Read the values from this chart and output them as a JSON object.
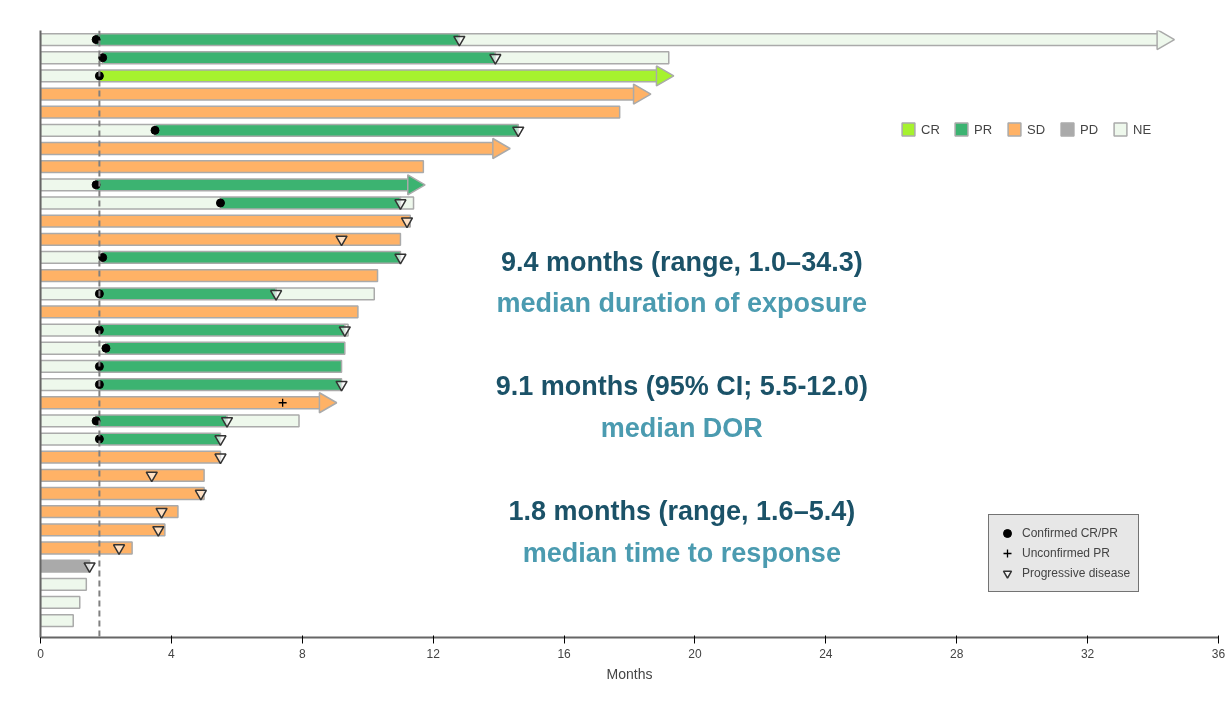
{
  "chart_data": {
    "type": "bar",
    "orientation": "horizontal",
    "stacked": true,
    "xlabel": "Months",
    "categories": [
      null,
      null,
      null,
      null,
      null,
      null,
      null,
      null,
      null,
      null,
      null,
      null,
      null,
      null,
      null,
      null,
      null,
      null,
      null,
      null,
      null,
      null,
      null,
      null,
      null,
      null,
      null,
      null,
      null,
      null,
      null,
      null,
      null
    ],
    "xlim": [
      0,
      36
    ],
    "xticks": [
      0,
      4,
      8,
      12,
      16,
      20,
      24,
      28,
      32,
      36
    ],
    "tick_labels": "x",
    "grid": false,
    "legend": "right",
    "series": [
      {
        "color": "#eef8ec",
        "values": [
          1.7,
          1.9,
          1.8,
          null,
          null,
          3.5,
          null,
          null,
          1.7,
          5.5,
          null,
          null,
          1.9,
          null,
          1.8,
          null,
          1.8,
          2.0,
          1.8,
          1.8,
          null,
          1.7,
          1.8,
          null,
          null,
          null,
          null,
          null,
          null,
          null,
          1.4,
          1.2,
          1.0
        ]
      },
      {
        "name": "CR",
        "color": "#a6f22e",
        "values": [
          null,
          null,
          17.2,
          null,
          null,
          null,
          null,
          null,
          null,
          null,
          null,
          null,
          null,
          null,
          null,
          null,
          null,
          null,
          null,
          null,
          null,
          null,
          null,
          null,
          null,
          null,
          null,
          null,
          null,
          null,
          null,
          null,
          null
        ]
      },
      {
        "name": "PR",
        "color": "#3cb371",
        "values": [
          11.1,
          12.0,
          null,
          null,
          null,
          11.1,
          null,
          null,
          9.7,
          5.5,
          null,
          null,
          9.1,
          null,
          5.4,
          null,
          7.5,
          7.3,
          7.4,
          7.4,
          null,
          4.0,
          3.7,
          null,
          null,
          null,
          null,
          null,
          null,
          null,
          null,
          null,
          null
        ]
      },
      {
        "name": "SD",
        "color": "#ffb266",
        "values": [
          null,
          null,
          null,
          18.3,
          17.7,
          null,
          14.0,
          11.7,
          null,
          null,
          11.3,
          11.0,
          null,
          10.3,
          null,
          9.7,
          null,
          null,
          null,
          null,
          8.7,
          null,
          null,
          5.5,
          5.0,
          5.0,
          4.2,
          3.8,
          2.8,
          null,
          null,
          null,
          null
        ]
      },
      {
        "name": "PD",
        "color": "#aaaaaa",
        "values": [
          null,
          null,
          null,
          null,
          null,
          null,
          null,
          null,
          null,
          null,
          null,
          null,
          null,
          null,
          null,
          null,
          null,
          null,
          null,
          null,
          null,
          null,
          null,
          null,
          null,
          null,
          null,
          null,
          null,
          1.5,
          null,
          null,
          null
        ]
      },
      {
        "name": "NE",
        "color": "#eef8ec",
        "values": [
          21.5,
          5.3,
          null,
          null,
          null,
          null,
          null,
          null,
          null,
          0.4,
          null,
          null,
          null,
          null,
          3.0,
          null,
          0.1,
          null,
          null,
          null,
          null,
          2.2,
          null,
          null,
          null,
          null,
          null,
          null,
          null,
          null,
          null,
          null,
          null
        ]
      },
      {
        "type": "scatter",
        "marker": "triangle",
        "colors": [
          "#eef8ec",
          null,
          "#a6f22e",
          "#ffb266",
          null,
          null,
          "#ffb266",
          null,
          "#3cb371",
          null,
          null,
          null,
          null,
          null,
          null,
          null,
          null,
          null,
          null,
          null,
          "#ffb266",
          null,
          null,
          null,
          null,
          null,
          null,
          null,
          null,
          null,
          null,
          null,
          null
        ],
        "values": [
          34.3,
          null,
          19.0,
          18.3,
          null,
          null,
          14.0,
          null,
          11.4,
          null,
          null,
          null,
          null,
          null,
          null,
          null,
          null,
          null,
          null,
          null,
          8.7,
          null,
          null,
          null,
          null,
          null,
          null,
          null,
          null,
          null,
          null,
          null,
          null
        ]
      },
      {
        "type": "scatter",
        "name": "Confirmed CR/PR",
        "marker": "circle",
        "color": "#000000",
        "values": [
          1.7,
          1.9,
          1.8,
          null,
          null,
          3.5,
          null,
          null,
          1.7,
          5.5,
          null,
          null,
          1.9,
          null,
          1.8,
          null,
          1.8,
          2.0,
          1.8,
          1.8,
          null,
          1.7,
          1.8,
          null,
          null,
          null,
          null,
          null,
          null,
          null,
          null,
          null,
          null
        ]
      },
      {
        "type": "scatter",
        "name": "Unconfirmed PR",
        "marker": "cross",
        "color": "#000000",
        "values": [
          null,
          null,
          null,
          null,
          null,
          null,
          null,
          null,
          null,
          null,
          null,
          null,
          null,
          null,
          null,
          null,
          null,
          null,
          null,
          null,
          7.4,
          null,
          null,
          null,
          null,
          null,
          null,
          null,
          null,
          null,
          null,
          null,
          null
        ]
      },
      {
        "type": "scatter",
        "name": "Progressive disease",
        "marker": "triangle",
        "color": "#333333",
        "values": [
          12.8,
          13.9,
          null,
          null,
          null,
          14.6,
          null,
          null,
          null,
          11.0,
          11.2,
          9.2,
          11.0,
          null,
          7.2,
          null,
          9.3,
          null,
          null,
          9.2,
          null,
          5.7,
          5.5,
          5.5,
          3.4,
          4.9,
          3.7,
          3.6,
          2.4,
          1.5,
          null,
          null,
          null
        ]
      }
    ],
    "ref_lines": [
      {
        "axis": "x",
        "value": 1.8,
        "color": "#808080",
        "line_style": "dashed"
      }
    ],
    "annotations": [
      "9.4 months (range, 1.0–34.3)",
      "median duration of exposure",
      "9.1 months (95% CI; 5.5-12.0)",
      "median DOR",
      "1.8 months (range, 1.6–5.4)",
      "median time to response"
    ]
  }
}
